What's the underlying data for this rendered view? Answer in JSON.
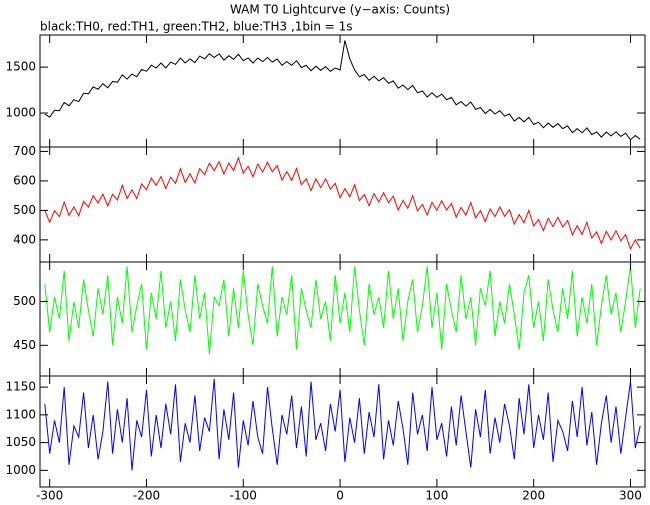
{
  "chart_data": [
    {
      "type": "line",
      "title": "WAM T0 Lightcurve (y−axis: Counts)",
      "subtitle": "black:TH0, red:TH1, green:TH2, blue:TH3 ,1bin = 1s",
      "x": [
        -305,
        -300,
        -295,
        -290,
        -285,
        -280,
        -275,
        -270,
        -265,
        -260,
        -255,
        -250,
        -245,
        -240,
        -235,
        -230,
        -225,
        -220,
        -215,
        -210,
        -205,
        -200,
        -195,
        -190,
        -185,
        -180,
        -175,
        -170,
        -165,
        -160,
        -155,
        -150,
        -145,
        -140,
        -135,
        -130,
        -125,
        -120,
        -115,
        -110,
        -105,
        -100,
        -95,
        -90,
        -85,
        -80,
        -75,
        -70,
        -65,
        -60,
        -55,
        -50,
        -45,
        -40,
        -35,
        -30,
        -25,
        -20,
        -15,
        -10,
        -5,
        0,
        5,
        10,
        15,
        20,
        25,
        30,
        35,
        40,
        45,
        50,
        55,
        60,
        65,
        70,
        75,
        80,
        85,
        90,
        95,
        100,
        105,
        110,
        115,
        120,
        125,
        130,
        135,
        140,
        145,
        150,
        155,
        160,
        165,
        170,
        175,
        180,
        185,
        190,
        195,
        200,
        205,
        210,
        215,
        220,
        225,
        230,
        235,
        240,
        245,
        250,
        255,
        260,
        265,
        270,
        275,
        280,
        285,
        290,
        295,
        300,
        305,
        310
      ],
      "series": [
        {
          "name": "TH0",
          "color": "#000000",
          "values": [
            990,
            955,
            1030,
            1025,
            1115,
            1080,
            1145,
            1125,
            1215,
            1210,
            1285,
            1260,
            1320,
            1275,
            1345,
            1335,
            1415,
            1370,
            1425,
            1395,
            1475,
            1455,
            1520,
            1490,
            1545,
            1490,
            1555,
            1530,
            1600,
            1545,
            1590,
            1550,
            1620,
            1590,
            1645,
            1605,
            1645,
            1577,
            1625,
            1585,
            1640,
            1570,
            1600,
            1545,
            1600,
            1560,
            1605,
            1555,
            1590,
            1520,
            1560,
            1520,
            1570,
            1495,
            1520,
            1460,
            1510,
            1465,
            1505,
            1455,
            1490,
            1470,
            1790,
            1590,
            1470,
            1395,
            1420,
            1355,
            1400,
            1350,
            1385,
            1325,
            1350,
            1270,
            1305,
            1255,
            1300,
            1220,
            1240,
            1175,
            1220,
            1170,
            1205,
            1145,
            1170,
            1090,
            1125,
            1075,
            1120,
            1040,
            1060,
            995,
            1040,
            990,
            1025,
            965,
            990,
            913,
            951,
            904,
            952,
            875,
            900,
            840,
            890,
            845,
            885,
            830,
            860,
            787,
            829,
            786,
            838,
            765,
            794,
            738,
            792,
            751,
            795,
            745,
            780,
            710,
            755,
            715
          ]
        }
      ],
      "xlim": [
        -310,
        315
      ],
      "ylim": [
        630,
        1850
      ],
      "yticks": [
        1000,
        1500
      ]
    },
    {
      "type": "line",
      "series": [
        {
          "name": "TH1",
          "color": "#ff0000",
          "values": [
            500,
            460,
            499,
            479,
            528,
            483,
            512,
            482,
            531,
            511,
            550,
            525,
            555,
            515,
            555,
            535,
            585,
            540,
            570,
            540,
            590,
            570,
            610,
            585,
            615,
            574,
            613,
            592,
            641,
            595,
            624,
            593,
            642,
            621,
            660,
            635,
            665,
            623,
            660,
            635,
            678,
            626,
            650,
            614,
            657,
            630,
            663,
            631,
            652,
            602,
            632,
            602,
            642,
            587,
            607,
            567,
            607,
            577,
            607,
            572,
            592,
            543,
            574,
            546,
            587,
            533,
            554,
            516,
            557,
            528,
            560,
            526,
            548,
            501,
            534,
            507,
            550,
            498,
            521,
            484,
            527,
            500,
            533,
            501,
            524,
            477,
            510,
            484,
            527,
            475,
            499,
            462,
            505,
            479,
            512,
            480,
            502,
            454,
            486,
            458,
            500,
            447,
            469,
            431,
            473,
            445,
            477,
            444,
            466,
            417,
            448,
            419,
            460,
            406,
            427,
            388,
            429,
            400,
            431,
            397,
            418,
            369,
            400,
            371
          ]
        }
      ],
      "xlim": [
        -310,
        315
      ],
      "ylim": [
        325,
        715
      ],
      "yticks": [
        400,
        500,
        600,
        700
      ]
    },
    {
      "type": "line",
      "series": [
        {
          "name": "TH2",
          "color": "#00ff00",
          "values": [
            520,
            465,
            505,
            480,
            535,
            455,
            500,
            470,
            525,
            490,
            460,
            515,
            485,
            530,
            450,
            505,
            475,
            540,
            465,
            495,
            520,
            445,
            510,
            480,
            535,
            470,
            500,
            455,
            525,
            490,
            465,
            530,
            480,
            510,
            440,
            505,
            495,
            525,
            460,
            515,
            470,
            535,
            485,
            450,
            520,
            495,
            475,
            540,
            460,
            505,
            485,
            530,
            445,
            515,
            490,
            470,
            525,
            480,
            500,
            455,
            530,
            475,
            510,
            465,
            540,
            490,
            450,
            520,
            485,
            505,
            470,
            535,
            480,
            515,
            455,
            500,
            525,
            465,
            495,
            540,
            470,
            510,
            445,
            520,
            490,
            465,
            530,
            480,
            505,
            450,
            515,
            495,
            535,
            460,
            500,
            475,
            520,
            485,
            445,
            510,
            530,
            470,
            500,
            455,
            525,
            490,
            465,
            515,
            480,
            535,
            460,
            505,
            475,
            520,
            450,
            495,
            530,
            485,
            510,
            465,
            500,
            540,
            470,
            515
          ]
        }
      ],
      "xlim": [
        -310,
        315
      ],
      "ylim": [
        415,
        545
      ],
      "yticks": [
        450,
        500
      ]
    },
    {
      "type": "line",
      "series": [
        {
          "name": "TH3",
          "color": "#0000ff",
          "values": [
            1120,
            1030,
            1090,
            1050,
            1150,
            1010,
            1080,
            1060,
            1140,
            1040,
            1100,
            1020,
            1070,
            1160,
            1030,
            1110,
            1050,
            1130,
            1000,
            1090,
            1060,
            1145,
            1025,
            1100,
            1040,
            1120,
            1065,
            1155,
            1015,
            1085,
            1050,
            1135,
            1035,
            1095,
            1070,
            1165,
            1020,
            1110,
            1055,
            1140,
            1005,
            1090,
            1045,
            1125,
            1060,
            1030,
            1150,
            1075,
            1010,
            1100,
            1065,
            1135,
            1040,
            1115,
            1025,
            1160,
            1055,
            1085,
            1035,
            1120,
            1070,
            1145,
            1015,
            1095,
            1050,
            1130,
            1030,
            1105,
            1060,
            1155,
            1020,
            1090,
            1045,
            1125,
            1075,
            1010,
            1140,
            1065,
            1100,
            1035,
            1150,
            1055,
            1085,
            1025,
            1115,
            1045,
            1135,
            1070,
            1005,
            1110,
            1060,
            1145,
            1030,
            1095,
            1050,
            1120,
            1080,
            1020,
            1130,
            1065,
            1155,
            1040,
            1100,
            1055,
            1140,
            1015,
            1090,
            1070,
            1035,
            1125,
            1060,
            1150,
            1045,
            1105,
            1010,
            1085,
            1135,
            1050,
            1115,
            1030,
            1095,
            1160,
            1040,
            1080
          ]
        }
      ],
      "xlim": [
        -310,
        315
      ],
      "ylim": [
        970,
        1170
      ],
      "yticks": [
        1000,
        1050,
        1100,
        1150
      ],
      "xticks": [
        -300,
        -200,
        -100,
        0,
        100,
        200,
        300
      ]
    }
  ]
}
